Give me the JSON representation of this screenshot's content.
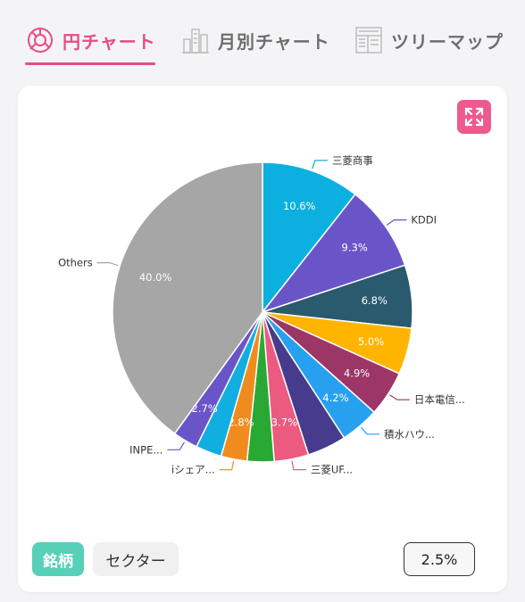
{
  "tabs": [
    {
      "label": "円チャート",
      "icon": "pie-chart-icon",
      "active": true
    },
    {
      "label": "月別チャート",
      "icon": "building-bar-icon",
      "active": false
    },
    {
      "label": "ツリーマップ",
      "icon": "treemap-icon",
      "active": false
    }
  ],
  "colors": {
    "accent": "#e94b86",
    "toggle_active": "#57d0b8"
  },
  "toggle": {
    "stock_label": "銘柄",
    "sector_label": "セクター"
  },
  "threshold_label": "2.5%",
  "expand_icon": "expand-icon",
  "chart_data": {
    "type": "pie",
    "slices": [
      {
        "label": "三菱商事",
        "value": 10.6,
        "value_label": "10.6%",
        "color": "#0bb0e0"
      },
      {
        "label": "KDDI",
        "value": 9.3,
        "value_label": "9.3%",
        "color": "#6a55c8"
      },
      {
        "label": "",
        "value": 6.8,
        "value_label": "6.8%",
        "color": "#2a5a6e"
      },
      {
        "label": "",
        "value": 5.0,
        "value_label": "5.0%",
        "color": "#ffb400"
      },
      {
        "label": "日本電信...",
        "value": 4.9,
        "value_label": "4.9%",
        "color": "#9c3667"
      },
      {
        "label": "積水ハウ...",
        "value": 4.2,
        "value_label": "4.2%",
        "color": "#27a0f0"
      },
      {
        "label": "",
        "value": 4.2,
        "value_label": "",
        "color": "#463b8c"
      },
      {
        "label": "三菱UF...",
        "value": 3.7,
        "value_label": "3.7%",
        "color": "#ec5a80"
      },
      {
        "label": "",
        "value": 2.9,
        "value_label": "",
        "color": "#2aa834"
      },
      {
        "label": "iシェア...",
        "value": 2.8,
        "value_label": "2.8%",
        "color": "#f08c1e"
      },
      {
        "label": "",
        "value": 2.8,
        "value_label": "",
        "color": "#11aee2"
      },
      {
        "label": "INPE...",
        "value": 2.7,
        "value_label": "2.7%",
        "color": "#6a55c8"
      },
      {
        "label": "Others",
        "value": 40.0,
        "value_label": "40.0%",
        "color": "#a6a6a6"
      }
    ]
  }
}
